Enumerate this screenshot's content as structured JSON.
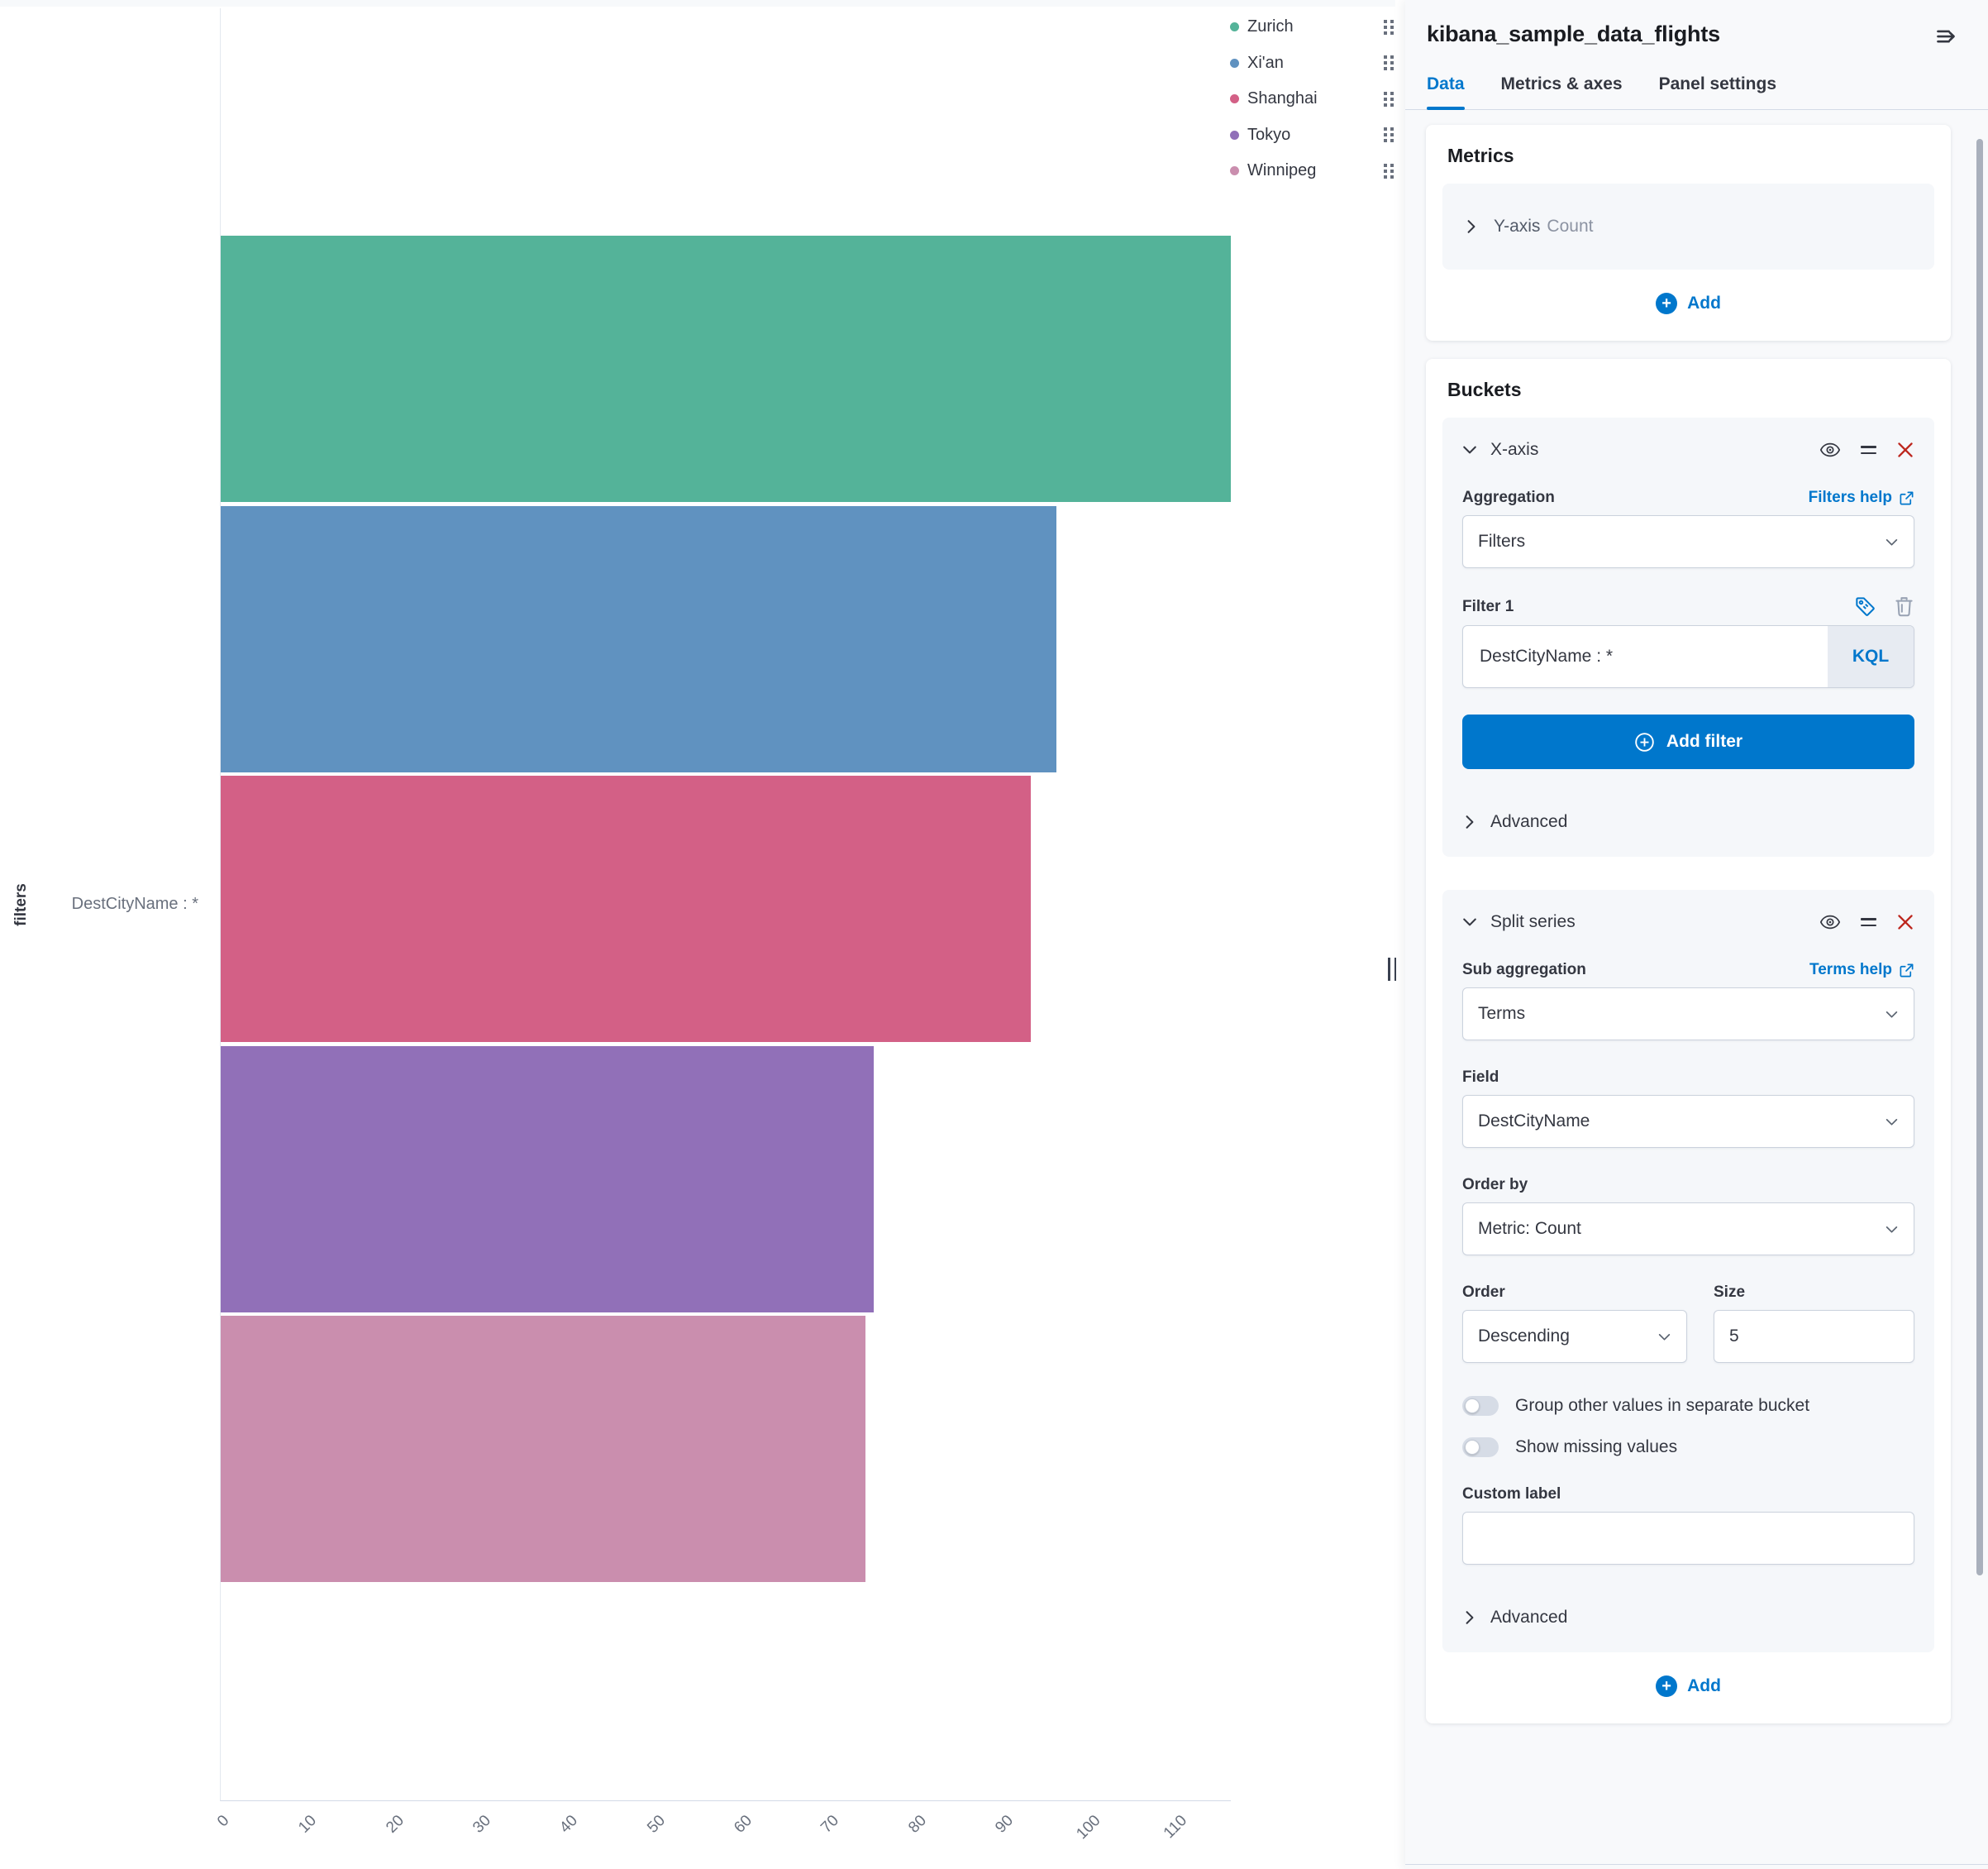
{
  "chart": {
    "legend": {
      "items": [
        {
          "label": "Zurich",
          "color": "#54B399"
        },
        {
          "label": "Xi'an",
          "color": "#6092C0"
        },
        {
          "label": "Shanghai",
          "color": "#D36086"
        },
        {
          "label": "Tokyo",
          "color": "#9170B8"
        },
        {
          "label": "Winnipeg",
          "color": "#CA8EAE"
        }
      ]
    },
    "y_axis_title": "filters",
    "category_label": "DestCityName : *",
    "x_axis": {
      "ticks": [
        0,
        10,
        20,
        30,
        40,
        50,
        60,
        70,
        80,
        90,
        100,
        110
      ],
      "max": 116
    }
  },
  "chart_data": {
    "type": "bar",
    "orientation": "horizontal",
    "title": "",
    "categories": [
      "Zurich",
      "Xi'an",
      "Shanghai",
      "Tokyo",
      "Winnipeg"
    ],
    "values": [
      116,
      96,
      93,
      75,
      74
    ],
    "colors": [
      "#54B399",
      "#6092C0",
      "#D36086",
      "#9170B8",
      "#CA8EAE"
    ],
    "value_axis_label": "Count",
    "category_axis_title": "filters",
    "category_group_label": "DestCityName : *",
    "value_domain": [
      0,
      116
    ],
    "value_ticks": [
      0,
      10,
      20,
      30,
      40,
      50,
      60,
      70,
      80,
      90,
      100,
      110
    ],
    "grid": false,
    "legend_position": "top-right"
  },
  "panel": {
    "title": "kibana_sample_data_flights",
    "tabs": [
      {
        "label": "Data",
        "active": true
      },
      {
        "label": "Metrics & axes",
        "active": false
      },
      {
        "label": "Panel settings",
        "active": false
      }
    ],
    "metrics": {
      "heading": "Metrics",
      "y_axis_item": {
        "prefix": "Y-axis",
        "value": "Count"
      },
      "add_label": "Add"
    },
    "buckets": {
      "heading": "Buckets",
      "x_axis": {
        "title": "X-axis",
        "aggregation_label": "Aggregation",
        "help_link": "Filters help",
        "aggregation_value": "Filters",
        "filter_label": "Filter 1",
        "filter_value": "DestCityName : *",
        "filter_lang": "KQL",
        "add_filter_label": "Add filter",
        "advanced_label": "Advanced"
      },
      "split_series": {
        "title": "Split series",
        "sub_aggregation_label": "Sub aggregation",
        "help_link": "Terms help",
        "sub_aggregation_value": "Terms",
        "field_label": "Field",
        "field_value": "DestCityName",
        "order_by_label": "Order by",
        "order_by_value": "Metric: Count",
        "order_label": "Order",
        "order_value": "Descending",
        "size_label": "Size",
        "size_value": "5",
        "group_other_toggle": {
          "label": "Group other values in separate bucket",
          "on": false
        },
        "show_missing_toggle": {
          "label": "Show missing values",
          "on": false
        },
        "custom_label_label": "Custom label",
        "custom_label_value": "",
        "advanced_label": "Advanced"
      },
      "add_label": "Add"
    },
    "colors": {
      "primary": "#0077CC",
      "danger": "#BD271E",
      "text": "#343741",
      "subdued": "#69707D"
    }
  }
}
